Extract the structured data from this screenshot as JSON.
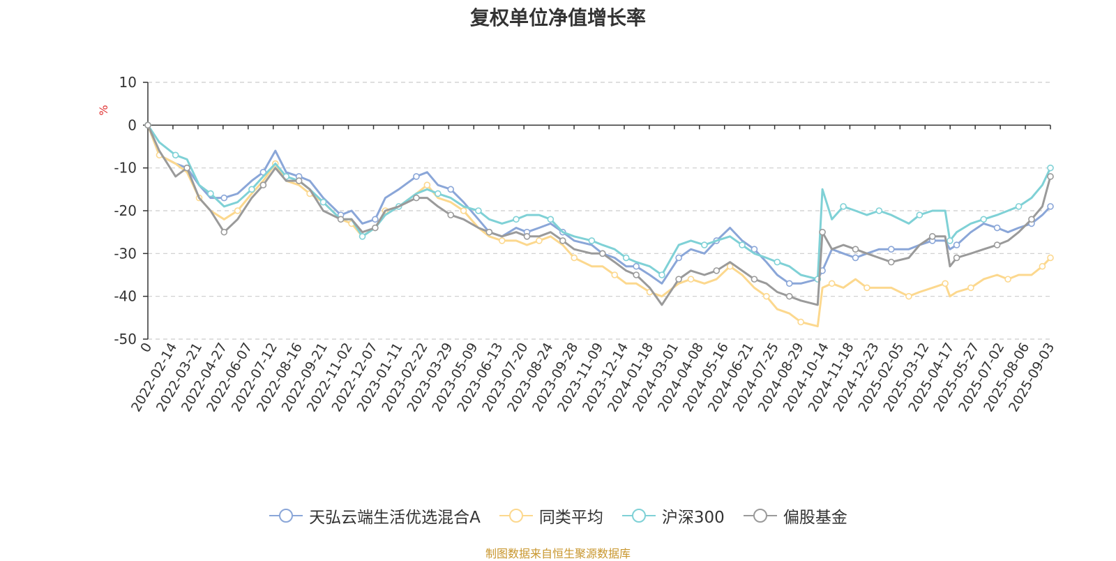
{
  "chart_data": {
    "type": "line",
    "title": "复权单位净值增长率",
    "ylabel": "%",
    "xlabel": "",
    "source": "制图数据来自恒生聚源数据库",
    "ylim": [
      -50,
      10
    ],
    "y_ticks": [
      10,
      0,
      -10,
      -20,
      -30,
      -40,
      -50
    ],
    "grid": true,
    "legend_position": "bottom",
    "x_tick_labels": [
      "0",
      "2022-02-14",
      "2022-03-21",
      "2022-04-27",
      "2022-06-07",
      "2022-07-12",
      "2022-08-16",
      "2022-09-21",
      "2022-11-02",
      "2022-12-07",
      "2023-01-11",
      "2023-02-22",
      "2023-03-29",
      "2023-05-09",
      "2023-06-13",
      "2023-07-20",
      "2023-08-24",
      "2023-09-28",
      "2023-11-09",
      "2023-12-14",
      "2024-01-18",
      "2024-03-01",
      "2024-04-08",
      "2024-05-16",
      "2024-06-21",
      "2024-07-25",
      "2024-08-29",
      "2024-10-14",
      "2024-11-18",
      "2024-12-23",
      "2025-02-05",
      "2025-03-12",
      "2025-04-17",
      "2025-05-27",
      "2025-07-02",
      "2025-08-06",
      "2025-09-03"
    ],
    "x": [
      "2022-01-04",
      "2022-01-21",
      "2022-02-14",
      "2022-03-03",
      "2022-03-21",
      "2022-04-07",
      "2022-04-27",
      "2022-05-17",
      "2022-06-07",
      "2022-06-24",
      "2022-07-12",
      "2022-07-28",
      "2022-08-16",
      "2022-09-01",
      "2022-09-21",
      "2022-10-17",
      "2022-11-02",
      "2022-11-18",
      "2022-12-07",
      "2022-12-22",
      "2023-01-11",
      "2023-02-06",
      "2023-02-22",
      "2023-03-10",
      "2023-03-29",
      "2023-04-17",
      "2023-05-09",
      "2023-05-25",
      "2023-06-13",
      "2023-07-04",
      "2023-07-20",
      "2023-08-07",
      "2023-08-24",
      "2023-09-11",
      "2023-09-28",
      "2023-10-24",
      "2023-11-09",
      "2023-11-27",
      "2023-12-14",
      "2023-12-29",
      "2024-01-18",
      "2024-02-05",
      "2024-03-01",
      "2024-03-19",
      "2024-04-08",
      "2024-04-26",
      "2024-05-16",
      "2024-06-03",
      "2024-06-21",
      "2024-07-09",
      "2024-07-25",
      "2024-08-12",
      "2024-08-29",
      "2024-09-23",
      "2024-09-30",
      "2024-10-14",
      "2024-10-31",
      "2024-11-18",
      "2024-12-05",
      "2024-12-23",
      "2025-01-10",
      "2025-02-05",
      "2025-02-21",
      "2025-03-12",
      "2025-03-31",
      "2025-04-07",
      "2025-04-17",
      "2025-05-08",
      "2025-05-27",
      "2025-06-16",
      "2025-07-02",
      "2025-07-18",
      "2025-08-06",
      "2025-08-22",
      "2025-09-03"
    ],
    "series": [
      {
        "name": "天弘云端生活优选混合A",
        "color": "#8aa6d8",
        "values": [
          0,
          -7,
          -9,
          -10,
          -14,
          -17,
          -17,
          -16,
          -13,
          -11,
          -6,
          -11,
          -12,
          -13,
          -17,
          -21,
          -20,
          -23,
          -22,
          -17,
          -15,
          -12,
          -11,
          -14,
          -15,
          -18,
          -22,
          -25,
          -26,
          -24,
          -25,
          -24,
          -23,
          -25,
          -27,
          -28,
          -30,
          -31,
          -33,
          -33,
          -35,
          -37,
          -31,
          -29,
          -30,
          -27,
          -24,
          -27,
          -29,
          -32,
          -35,
          -37,
          -37,
          -36,
          -34,
          -29,
          -30,
          -31,
          -30,
          -29,
          -29,
          -29,
          -28,
          -27,
          -27,
          -29,
          -28,
          -25,
          -23,
          -24,
          -25,
          -24,
          -23,
          -21,
          -19
        ]
      },
      {
        "name": "同类平均",
        "color": "#fcd88e",
        "values": [
          0,
          -7,
          -9,
          -11,
          -17,
          -20,
          -22,
          -20,
          -16,
          -13,
          -9,
          -13,
          -14,
          -16,
          -18,
          -22,
          -23,
          -26,
          -24,
          -20,
          -19,
          -16,
          -14,
          -17,
          -18,
          -20,
          -24,
          -26,
          -27,
          -27,
          -28,
          -27,
          -26,
          -28,
          -31,
          -33,
          -33,
          -35,
          -37,
          -37,
          -39,
          -40,
          -37,
          -36,
          -37,
          -36,
          -33,
          -35,
          -38,
          -40,
          -43,
          -44,
          -46,
          -47,
          -38,
          -37,
          -38,
          -36,
          -38,
          -38,
          -38,
          -40,
          -39,
          -38,
          -37,
          -40,
          -39,
          -38,
          -36,
          -35,
          -36,
          -35,
          -35,
          -33,
          -31
        ]
      },
      {
        "name": "沪深300",
        "color": "#7fd1d6",
        "values": [
          0,
          -4,
          -7,
          -8,
          -14,
          -16,
          -19,
          -18,
          -15,
          -12,
          -9,
          -12,
          -13,
          -15,
          -18,
          -22,
          -22,
          -26,
          -24,
          -21,
          -19,
          -16,
          -15,
          -16,
          -17,
          -19,
          -20,
          -22,
          -23,
          -22,
          -21,
          -21,
          -22,
          -25,
          -26,
          -27,
          -28,
          -29,
          -31,
          -32,
          -33,
          -35,
          -28,
          -27,
          -28,
          -27,
          -26,
          -28,
          -30,
          -31,
          -32,
          -33,
          -35,
          -36,
          -15,
          -22,
          -19,
          -20,
          -21,
          -20,
          -21,
          -23,
          -21,
          -20,
          -20,
          -27,
          -25,
          -23,
          -22,
          -21,
          -20,
          -19,
          -17,
          -14,
          -10
        ]
      },
      {
        "name": "偏股基金",
        "color": "#9a9a9a",
        "values": [
          0,
          -6,
          -12,
          -10,
          -17,
          -20,
          -25,
          -22,
          -17,
          -14,
          -10,
          -13,
          -13,
          -15,
          -20,
          -22,
          -22,
          -25,
          -24,
          -20,
          -19,
          -17,
          -17,
          -19,
          -21,
          -22,
          -24,
          -25,
          -26,
          -25,
          -26,
          -26,
          -25,
          -27,
          -29,
          -30,
          -30,
          -32,
          -34,
          -35,
          -38,
          -42,
          -36,
          -34,
          -35,
          -34,
          -32,
          -34,
          -36,
          -37,
          -39,
          -40,
          -41,
          -42,
          -25,
          -29,
          -28,
          -29,
          -30,
          -31,
          -32,
          -31,
          -28,
          -26,
          -26,
          -33,
          -31,
          -30,
          -29,
          -28,
          -27,
          -25,
          -22,
          -19,
          -12
        ]
      }
    ]
  }
}
